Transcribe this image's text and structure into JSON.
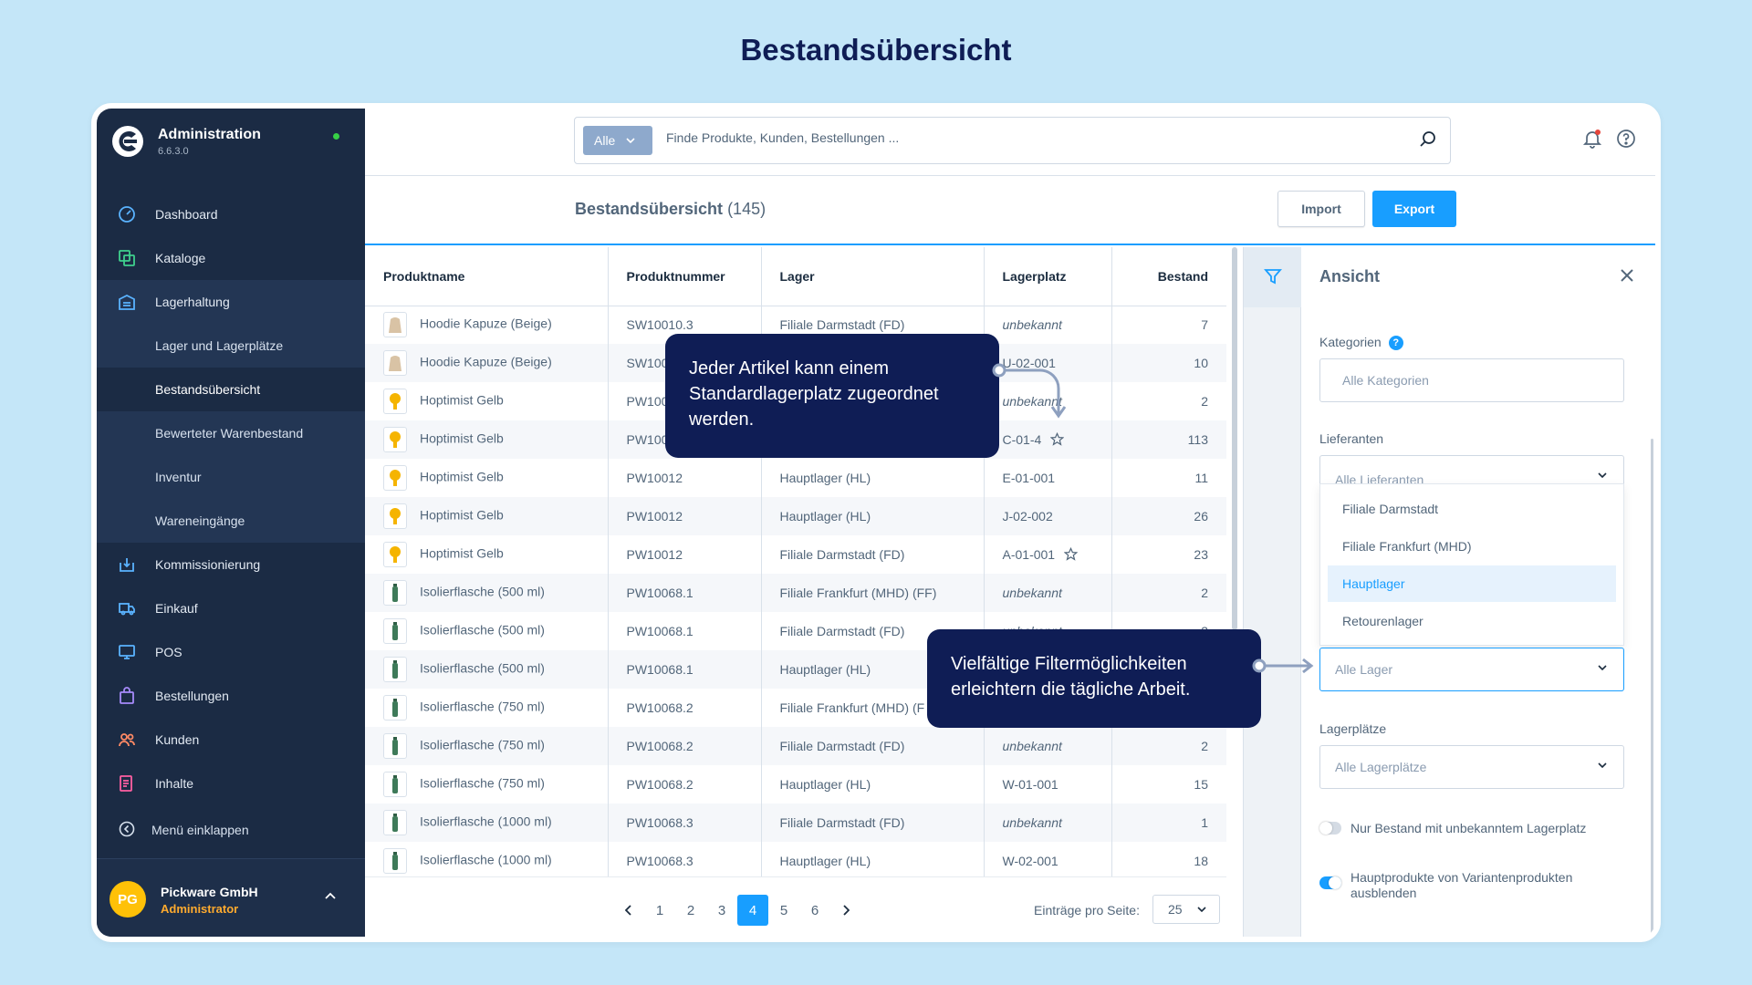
{
  "page_title": "Bestandsübersicht",
  "sidebar": {
    "app_title": "Administration",
    "version": "6.6.3.0",
    "items": [
      {
        "label": "Dashboard",
        "icon": "dashboard-icon"
      },
      {
        "label": "Kataloge",
        "icon": "catalog-icon"
      },
      {
        "label": "Lagerhaltung",
        "icon": "warehouse-icon"
      },
      {
        "label": "Kommissionierung",
        "icon": "picking-icon"
      },
      {
        "label": "Einkauf",
        "icon": "truck-icon"
      },
      {
        "label": "POS",
        "icon": "pos-icon"
      },
      {
        "label": "Bestellungen",
        "icon": "shopping-bag-icon"
      },
      {
        "label": "Kunden",
        "icon": "users-icon"
      },
      {
        "label": "Inhalte",
        "icon": "content-icon"
      }
    ],
    "sub_items": [
      "Lager und Lagerplätze",
      "Bestandsübersicht",
      "Bewerteter Warenbestand",
      "Inventur",
      "Wareneingänge"
    ],
    "collapse_label": "Menü einklappen",
    "user": {
      "initials": "PG",
      "name": "Pickware GmbH",
      "role": "Administrator"
    }
  },
  "search": {
    "type": "Alle",
    "placeholder": "Finde Produkte, Kunden, Bestellungen ..."
  },
  "header": {
    "title": "Bestandsübersicht",
    "count": "(145)",
    "import_label": "Import",
    "export_label": "Export"
  },
  "table": {
    "columns": [
      "Produktname",
      "Produktnummer",
      "Lager",
      "Lagerplatz",
      "Bestand"
    ],
    "rows": [
      [
        "Hoodie Kapuze (Beige)",
        "SW10010.3",
        "Filiale Darmstadt (FD)",
        "unbekannt",
        "7"
      ],
      [
        "Hoodie Kapuze (Beige)",
        "SW100",
        "",
        "U-02-001",
        "10"
      ],
      [
        "Hoptimist Gelb",
        "PW100",
        "",
        "unbekannt",
        "2"
      ],
      [
        "Hoptimist Gelb",
        "PW100",
        "",
        "C-01-4",
        "113"
      ],
      [
        "Hoptimist Gelb",
        "PW10012",
        "Hauptlager (HL)",
        "E-01-001",
        "11"
      ],
      [
        "Hoptimist Gelb",
        "PW10012",
        "Hauptlager (HL)",
        "J-02-002",
        "26"
      ],
      [
        "Hoptimist Gelb",
        "PW10012",
        "Filiale Darmstadt (FD)",
        "A-01-001",
        "23"
      ],
      [
        "Isolierflasche (500 ml)",
        "PW10068.1",
        "Filiale Frankfurt (MHD) (FF)",
        "unbekannt",
        "2"
      ],
      [
        "Isolierflasche (500 ml)",
        "PW10068.1",
        "Filiale Darmstadt (FD)",
        "unbekannt",
        "3"
      ],
      [
        "Isolierflasche (500 ml)",
        "PW10068.1",
        "Hauptlager (HL)",
        "",
        ""
      ],
      [
        "Isolierflasche (750 ml)",
        "PW10068.2",
        "Filiale Frankfurt (MHD) (F",
        "",
        ""
      ],
      [
        "Isolierflasche (750 ml)",
        "PW10068.2",
        "Filiale Darmstadt (FD)",
        "unbekannt",
        "2"
      ],
      [
        "Isolierflasche (750 ml)",
        "PW10068.2",
        "Hauptlager (HL)",
        "W-01-001",
        "15"
      ],
      [
        "Isolierflasche (1000 ml)",
        "PW10068.3",
        "Filiale Darmstadt (FD)",
        "unbekannt",
        "1"
      ],
      [
        "Isolierflasche (1000 ml)",
        "PW10068.3",
        "Hauptlager (HL)",
        "W-02-001",
        "18"
      ]
    ]
  },
  "pagination": {
    "pages": [
      "1",
      "2",
      "3",
      "4",
      "5",
      "6"
    ],
    "current": "4",
    "per_page_label": "Einträge pro Seite:",
    "per_page": "25"
  },
  "panel": {
    "title": "Ansicht",
    "kategorien_label": "Kategorien",
    "kategorien_placeholder": "Alle Kategorien",
    "lieferanten_label": "Lieferanten",
    "lieferanten_placeholder": "Alle Lieferanten",
    "dropdown_options": [
      "Filiale Darmstadt",
      "Filiale Frankfurt (MHD)",
      "Hauptlager",
      "Retourenlager"
    ],
    "lager_placeholder": "Alle Lager",
    "lagerplaetze_label": "Lagerplätze",
    "lagerplaetze_placeholder": "Alle Lagerplätze",
    "toggle1_label": "Nur Bestand mit unbekanntem Lagerplatz",
    "toggle2_label": "Hauptprodukte von Variantenprodukten ausblenden"
  },
  "callouts": {
    "one": "Jeder Artikel kann einem Standardlagerplatz zugeordnet werden.",
    "two": "Vielfältige Filtermöglichkeiten erleichtern die tägliche Arbeit."
  },
  "colors": {
    "accent": "#189eff",
    "sidebar": "#1b2b44",
    "callout": "#0f1d55",
    "background": "#c4e6f8"
  }
}
